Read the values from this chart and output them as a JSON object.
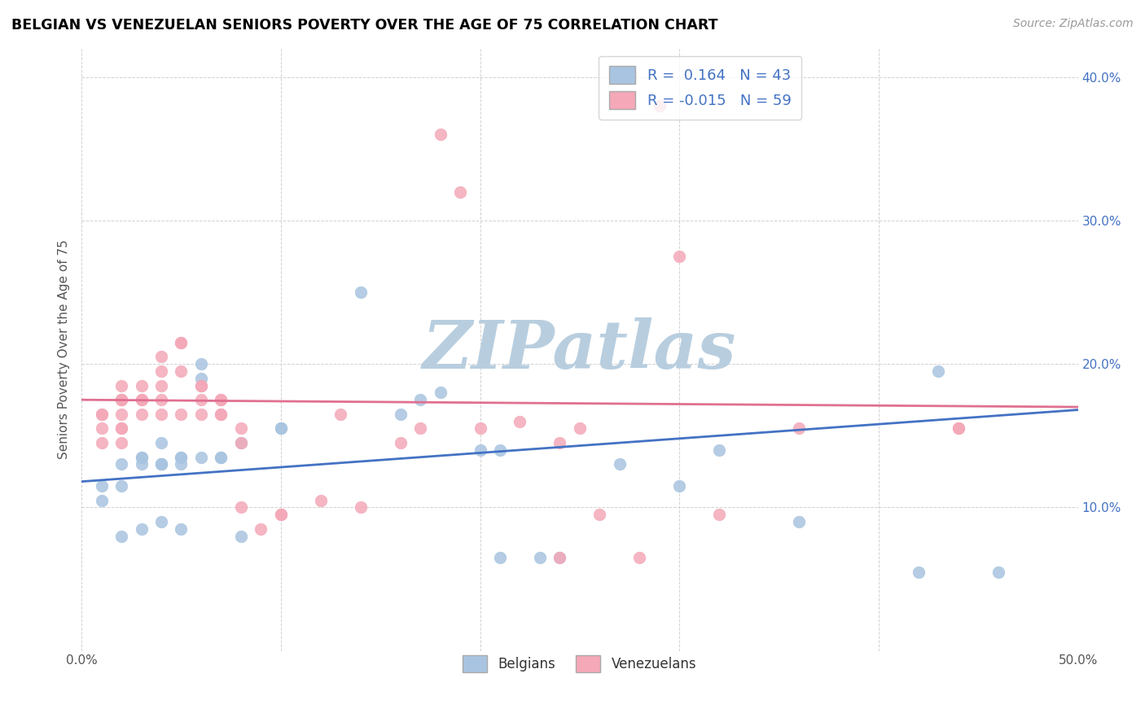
{
  "title": "BELGIAN VS VENEZUELAN SENIORS POVERTY OVER THE AGE OF 75 CORRELATION CHART",
  "source": "Source: ZipAtlas.com",
  "ylabel": "Seniors Poverty Over the Age of 75",
  "xlim": [
    0.0,
    0.5
  ],
  "ylim": [
    0.0,
    0.42
  ],
  "belgian_R": 0.164,
  "belgian_N": 43,
  "venezuelan_R": -0.015,
  "venezuelan_N": 59,
  "belgian_color": "#a8c4e0",
  "venezuelan_color": "#f4a8b8",
  "belgian_line_color": "#4472c4",
  "venezuelan_line_color": "#e07090",
  "watermark": "ZIPatlas",
  "watermark_color": "#b8cedf",
  "legend_R_color": "#4472c4",
  "legend_N_color": "#4472c4",
  "belgian_x": [
    0.01,
    0.01,
    0.02,
    0.02,
    0.02,
    0.03,
    0.03,
    0.03,
    0.03,
    0.04,
    0.04,
    0.04,
    0.04,
    0.04,
    0.05,
    0.05,
    0.05,
    0.05,
    0.06,
    0.06,
    0.06,
    0.07,
    0.07,
    0.08,
    0.08,
    0.1,
    0.1,
    0.14,
    0.16,
    0.17,
    0.18,
    0.2,
    0.21,
    0.21,
    0.23,
    0.24,
    0.27,
    0.3,
    0.32,
    0.36,
    0.42,
    0.43,
    0.46
  ],
  "belgian_y": [
    0.115,
    0.105,
    0.115,
    0.13,
    0.08,
    0.13,
    0.135,
    0.135,
    0.085,
    0.13,
    0.13,
    0.13,
    0.09,
    0.145,
    0.135,
    0.135,
    0.085,
    0.13,
    0.135,
    0.19,
    0.2,
    0.135,
    0.135,
    0.08,
    0.145,
    0.155,
    0.155,
    0.25,
    0.165,
    0.175,
    0.18,
    0.14,
    0.14,
    0.065,
    0.065,
    0.065,
    0.13,
    0.115,
    0.14,
    0.09,
    0.055,
    0.195,
    0.055
  ],
  "venezuelan_x": [
    0.01,
    0.01,
    0.01,
    0.01,
    0.02,
    0.02,
    0.02,
    0.02,
    0.02,
    0.02,
    0.02,
    0.02,
    0.03,
    0.03,
    0.03,
    0.03,
    0.04,
    0.04,
    0.04,
    0.04,
    0.04,
    0.05,
    0.05,
    0.05,
    0.05,
    0.06,
    0.06,
    0.06,
    0.06,
    0.07,
    0.07,
    0.07,
    0.07,
    0.08,
    0.08,
    0.08,
    0.09,
    0.1,
    0.1,
    0.12,
    0.13,
    0.14,
    0.16,
    0.17,
    0.18,
    0.19,
    0.2,
    0.22,
    0.24,
    0.24,
    0.25,
    0.26,
    0.28,
    0.29,
    0.3,
    0.32,
    0.36,
    0.44,
    0.44
  ],
  "venezuelan_y": [
    0.145,
    0.155,
    0.165,
    0.165,
    0.145,
    0.175,
    0.155,
    0.155,
    0.165,
    0.175,
    0.175,
    0.185,
    0.165,
    0.175,
    0.175,
    0.185,
    0.175,
    0.165,
    0.185,
    0.195,
    0.205,
    0.165,
    0.195,
    0.215,
    0.215,
    0.165,
    0.175,
    0.185,
    0.185,
    0.165,
    0.175,
    0.165,
    0.175,
    0.1,
    0.145,
    0.155,
    0.085,
    0.095,
    0.095,
    0.105,
    0.165,
    0.1,
    0.145,
    0.155,
    0.36,
    0.32,
    0.155,
    0.16,
    0.145,
    0.065,
    0.155,
    0.095,
    0.065,
    0.38,
    0.275,
    0.095,
    0.155,
    0.155,
    0.155
  ],
  "belgian_line_x0": 0.0,
  "belgian_line_y0": 0.118,
  "belgian_line_x1": 0.5,
  "belgian_line_y1": 0.168,
  "venezuelan_line_x0": 0.0,
  "venezuelan_line_y0": 0.175,
  "venezuelan_line_x1": 0.5,
  "venezuelan_line_y1": 0.17
}
